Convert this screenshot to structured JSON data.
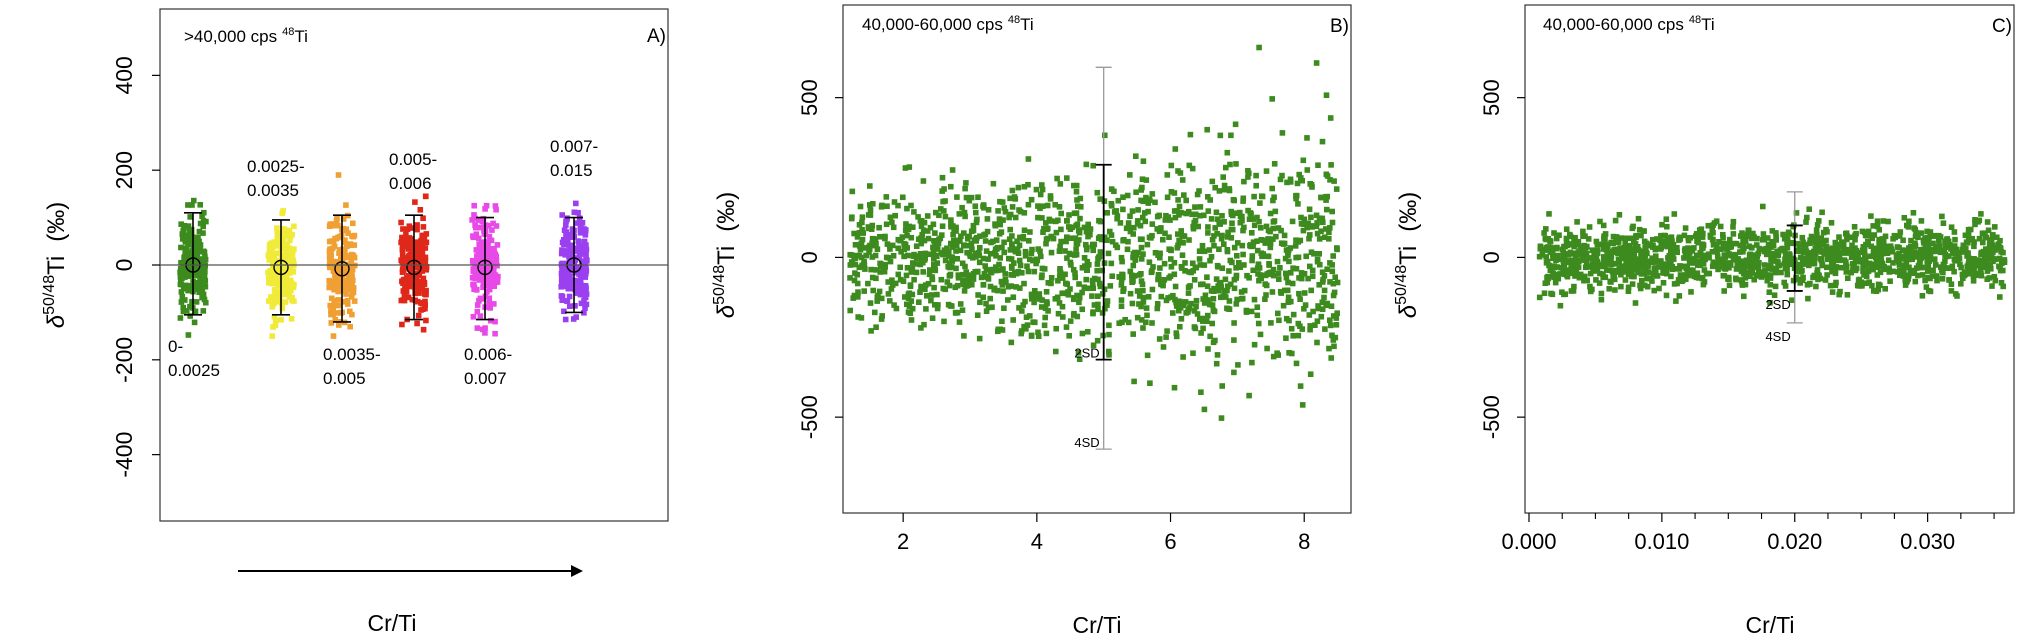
{
  "figure": {
    "x_caption": "Cr/Ti"
  },
  "chart_data": [
    {
      "panel": "A",
      "type": "scatter",
      "label": "A)",
      "header": ">40,000 cps",
      "header_isotope_mass": "48",
      "header_isotope": "Ti",
      "ylabel_delta": "δ",
      "ylabel_sup": "50/48",
      "ylabel_el": "Ti",
      "ylabel_unit": "(‰)",
      "xlabel": "Cr/Ti",
      "ylim": [
        -540,
        540
      ],
      "yticks": [
        "-400",
        "-200",
        "0",
        "200",
        "400"
      ],
      "ytick_values": [
        -400,
        -200,
        0,
        200,
        400
      ],
      "reference_line": 0,
      "groups": [
        {
          "range_line1": "0-",
          "range_line2": "0.0025",
          "color": "#3d8b1f",
          "mean": 0,
          "err_low": -105,
          "err_high": 110,
          "spread": [
            -150,
            150
          ]
        },
        {
          "range_line1": "0.0025-",
          "range_line2": "0.0035",
          "color": "#f0ea38",
          "mean": -5,
          "err_low": -105,
          "err_high": 95,
          "spread": [
            -150,
            115
          ]
        },
        {
          "range_line1": "0.0035-",
          "range_line2": "0.005",
          "color": "#f0a032",
          "mean": -8,
          "err_low": -120,
          "err_high": 105,
          "spread": [
            -150,
            205
          ]
        },
        {
          "range_line1": "0.005-",
          "range_line2": "0.006",
          "color": "#e0281a",
          "mean": -5,
          "err_low": -115,
          "err_high": 105,
          "spread": [
            -155,
            145
          ]
        },
        {
          "range_line1": "0.006-",
          "range_line2": "0.007",
          "color": "#e84ae8",
          "mean": -5,
          "err_low": -115,
          "err_high": 100,
          "spread": [
            -145,
            125
          ]
        },
        {
          "range_line1": "0.007-",
          "range_line2": "0.015",
          "color": "#9a40f0",
          "mean": 0,
          "err_low": -100,
          "err_high": 100,
          "spread": [
            -115,
            130
          ]
        }
      ]
    },
    {
      "panel": "B",
      "type": "scatter",
      "label": "B)",
      "header": "40,000-60,000 cps",
      "header_isotope_mass": "48",
      "header_isotope": "Ti",
      "ylabel_delta": "δ",
      "ylabel_sup": "50/48",
      "ylabel_el": "Ti",
      "ylabel_unit": "(‰)",
      "xlabel": "Cr/Ti",
      "xlim": [
        1.1,
        8.7
      ],
      "ylim": [
        -800,
        790
      ],
      "xticks": [
        "2",
        "4",
        "6",
        "8"
      ],
      "xtick_values": [
        2,
        4,
        6,
        8
      ],
      "yticks": [
        "-500",
        "0",
        "500"
      ],
      "ytick_values": [
        -500,
        0,
        500
      ],
      "point_color": "#3d8b1f",
      "point_count": 1500,
      "x_range": [
        1.2,
        8.5
      ],
      "y_sd": 130,
      "error_bar": {
        "x": 5.0,
        "mean": 0,
        "sd2_low": -320,
        "sd2_high": 290,
        "sd4_low": -600,
        "sd4_high": 595,
        "label_2sd": "2SD",
        "label_4sd": "4SD"
      }
    },
    {
      "panel": "C",
      "type": "scatter",
      "label": "C)",
      "header": "40,000-60,000 cps",
      "header_isotope_mass": "48",
      "header_isotope": "Ti",
      "ylabel_delta": "δ",
      "ylabel_sup": "50/48",
      "ylabel_el": "Ti",
      "ylabel_unit": "(‰)",
      "xlabel": "Cr/Ti",
      "xlim": [
        -0.0003,
        0.0365
      ],
      "ylim": [
        -800,
        790
      ],
      "xticks": [
        "0.000",
        "0.010",
        "0.020",
        "0.030"
      ],
      "xtick_values": [
        0,
        0.01,
        0.02,
        0.03
      ],
      "minor_xtick_values": [
        0.0025,
        0.005,
        0.0075,
        0.0125,
        0.015,
        0.0175,
        0.0225,
        0.025,
        0.0275,
        0.0325,
        0.035
      ],
      "yticks": [
        "-500",
        "0",
        "500"
      ],
      "ytick_values": [
        -500,
        0,
        500
      ],
      "point_color": "#3d8b1f",
      "point_count": 1500,
      "x_range": [
        0.0008,
        0.0358
      ],
      "y_sd": 50,
      "error_bar": {
        "x": 0.02,
        "mean": 0,
        "sd2_low": -105,
        "sd2_high": 100,
        "sd4_low": -205,
        "sd4_high": 205,
        "label_2sd": "2SD",
        "label_4sd": "4SD"
      }
    }
  ]
}
